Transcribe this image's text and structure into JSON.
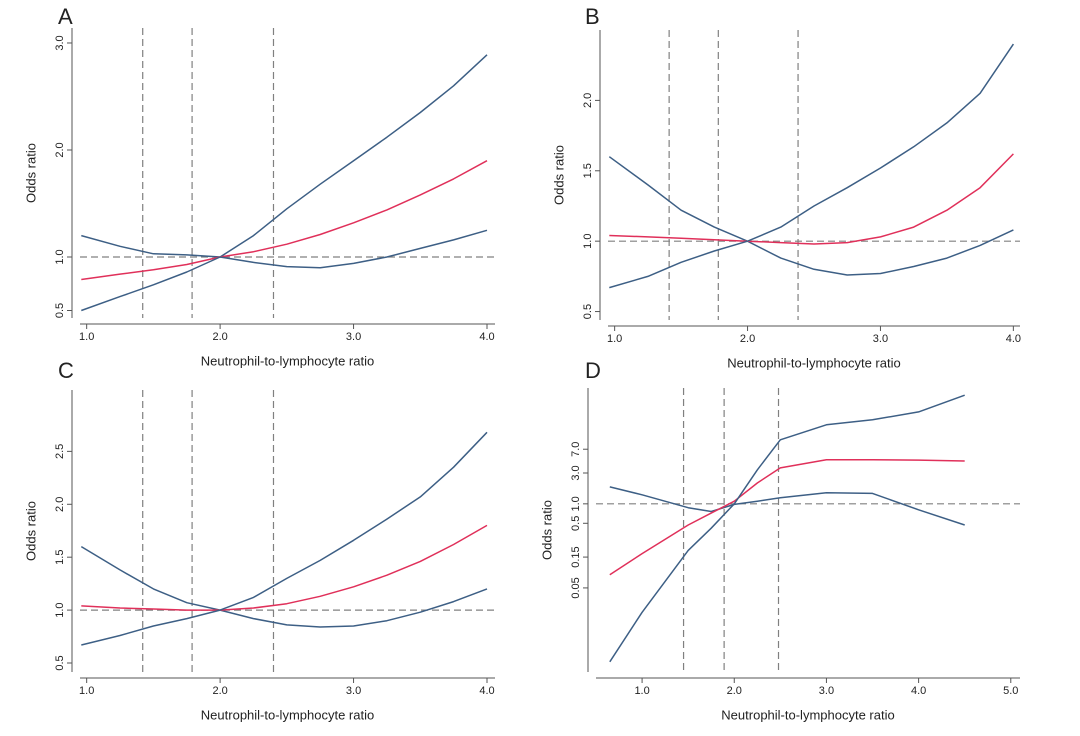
{
  "chart_data": [
    {
      "type": "line",
      "title": "A",
      "x_label": "Neutrophil-to-lymphocyte ratio",
      "y_label": "Odds ratio",
      "x": [
        0.96,
        1.25,
        1.5,
        1.75,
        2.0,
        2.25,
        2.5,
        2.75,
        3.0,
        3.25,
        3.5,
        3.75,
        4.0
      ],
      "series": [
        {
          "color": "#3d5f85",
          "values": [
            1.2,
            1.1,
            1.03,
            1.02,
            1.0,
            1.2,
            1.45,
            1.68,
            1.9,
            2.12,
            2.35,
            2.6,
            2.89
          ]
        },
        {
          "color": "#e0305a",
          "values": [
            0.79,
            0.84,
            0.88,
            0.93,
            1.0,
            1.05,
            1.12,
            1.21,
            1.32,
            1.44,
            1.58,
            1.73,
            1.9
          ]
        },
        {
          "color": "#3d5f85",
          "values": [
            0.5,
            0.63,
            0.74,
            0.86,
            1.0,
            0.95,
            0.91,
            0.9,
            0.94,
            1.0,
            1.08,
            1.16,
            1.25
          ]
        }
      ],
      "xlim": [
        0.95,
        4.06
      ],
      "xticks": [
        {
          "value": 1,
          "label": "1.0"
        },
        {
          "value": 2,
          "label": "2.0"
        },
        {
          "value": 3,
          "label": "3.0"
        },
        {
          "value": 4,
          "label": "4.0"
        }
      ],
      "ylim": [
        0.43,
        3.14
      ],
      "yticks": [
        0.5,
        {
          "value": 1,
          "label": "1.0"
        },
        {
          "value": 2,
          "label": "2.0"
        },
        {
          "value": 3,
          "label": "3.0"
        }
      ],
      "log_y": false,
      "hline": 1,
      "vlines": [
        1.42,
        1.79,
        2.4
      ]
    },
    {
      "type": "line",
      "title": "B",
      "x_label": "Neutrophil-to-lymphocyte ratio",
      "y_label": "Odds ratio",
      "x": [
        0.96,
        1.25,
        1.5,
        1.75,
        2.0,
        2.25,
        2.5,
        2.75,
        3.0,
        3.25,
        3.5,
        3.75,
        4.0
      ],
      "series": [
        {
          "color": "#3d5f85",
          "values": [
            1.6,
            1.4,
            1.22,
            1.1,
            1.0,
            0.88,
            0.8,
            0.76,
            0.77,
            0.82,
            0.88,
            0.97,
            1.08
          ]
        },
        {
          "color": "#e0305a",
          "values": [
            1.04,
            1.03,
            1.02,
            1.01,
            1.0,
            0.99,
            0.98,
            0.99,
            1.03,
            1.1,
            1.22,
            1.38,
            1.62
          ]
        },
        {
          "color": "#3d5f85",
          "values": [
            0.67,
            0.75,
            0.85,
            0.93,
            1.0,
            1.1,
            1.25,
            1.38,
            1.52,
            1.67,
            1.84,
            2.05,
            2.4
          ]
        }
      ],
      "xlim": [
        0.95,
        4.05
      ],
      "xticks": [
        {
          "value": 1,
          "label": "1.0"
        },
        {
          "value": 2,
          "label": "2.0"
        },
        {
          "value": 3,
          "label": "3.0"
        },
        {
          "value": 4,
          "label": "4.0"
        }
      ],
      "ylim": [
        0.44,
        2.5
      ],
      "yticks": [
        0.5,
        {
          "value": 1,
          "label": "1.0"
        },
        1.5,
        {
          "value": 2,
          "label": "2.0"
        }
      ],
      "log_y": false,
      "hline": 1,
      "vlines": [
        1.41,
        1.78,
        2.38
      ]
    },
    {
      "type": "line",
      "title": "C",
      "x_label": "Neutrophil-to-lymphocyte ratio",
      "y_label": "Odds ratio",
      "x": [
        0.96,
        1.25,
        1.5,
        1.75,
        2.0,
        2.25,
        2.5,
        2.75,
        3.0,
        3.25,
        3.5,
        3.75,
        4.0
      ],
      "series": [
        {
          "color": "#3d5f85",
          "values": [
            1.6,
            1.38,
            1.2,
            1.07,
            1.0,
            0.92,
            0.86,
            0.84,
            0.85,
            0.9,
            0.98,
            1.08,
            1.2
          ]
        },
        {
          "color": "#e0305a",
          "values": [
            1.04,
            1.02,
            1.01,
            1.0,
            1.0,
            1.02,
            1.06,
            1.13,
            1.22,
            1.33,
            1.46,
            1.62,
            1.8
          ]
        },
        {
          "color": "#3d5f85",
          "values": [
            0.67,
            0.76,
            0.85,
            0.92,
            1.0,
            1.12,
            1.3,
            1.47,
            1.66,
            1.86,
            2.07,
            2.35,
            2.68
          ]
        }
      ],
      "xlim": [
        0.95,
        4.06
      ],
      "xticks": [
        {
          "value": 1,
          "label": "1.0"
        },
        {
          "value": 2,
          "label": "2.0"
        },
        {
          "value": 3,
          "label": "3.0"
        },
        {
          "value": 4,
          "label": "4.0"
        }
      ],
      "ylim": [
        0.415,
        3.08
      ],
      "yticks": [
        0.5,
        {
          "value": 1,
          "label": "1.0"
        },
        1.5,
        {
          "value": 2,
          "label": "2.0"
        },
        2.5
      ],
      "log_y": false,
      "hline": 1,
      "vlines": [
        1.42,
        1.79,
        2.4
      ]
    },
    {
      "type": "line",
      "title": "D",
      "x_label": "Neutrophil-to-lymphocyte ratio",
      "y_label": "Odds ratio",
      "x": [
        0.65,
        1.0,
        1.5,
        1.75,
        2.0,
        2.25,
        2.5,
        3.0,
        3.5,
        4.0,
        4.5
      ],
      "series": [
        {
          "color": "#3d5f85",
          "values": [
            1.83,
            1.38,
            0.87,
            0.76,
            0.98,
            1.1,
            1.24,
            1.48,
            1.45,
            0.81,
            0.47
          ]
        },
        {
          "color": "#e0305a",
          "values": [
            0.08,
            0.17,
            0.47,
            0.72,
            1.1,
            2.1,
            3.6,
            4.8,
            4.8,
            4.75,
            4.6
          ]
        },
        {
          "color": "#3d5f85",
          "values": [
            0.0036,
            0.021,
            0.19,
            0.42,
            1.0,
            3.35,
            9.8,
            16.7,
            20,
            26.5,
            48
          ]
        }
      ],
      "xlim": [
        0.5,
        5.1
      ],
      "xticks": [
        {
          "value": 1,
          "label": "1.0"
        },
        {
          "value": 2,
          "label": "2.0"
        },
        {
          "value": 3,
          "label": "3.0"
        },
        {
          "value": 4,
          "label": "4.0"
        },
        {
          "value": 5,
          "label": "5.0"
        }
      ],
      "ylim": [
        0.0025,
        62
      ],
      "yticks": [
        0.05,
        0.15,
        0.5,
        {
          "value": 1,
          "label": "1.0"
        },
        {
          "value": 3,
          "label": "3.0"
        },
        {
          "value": 7,
          "label": "7.0"
        }
      ],
      "log_y": true,
      "hline": 1,
      "vlines": [
        1.45,
        1.89,
        2.48
      ]
    }
  ]
}
